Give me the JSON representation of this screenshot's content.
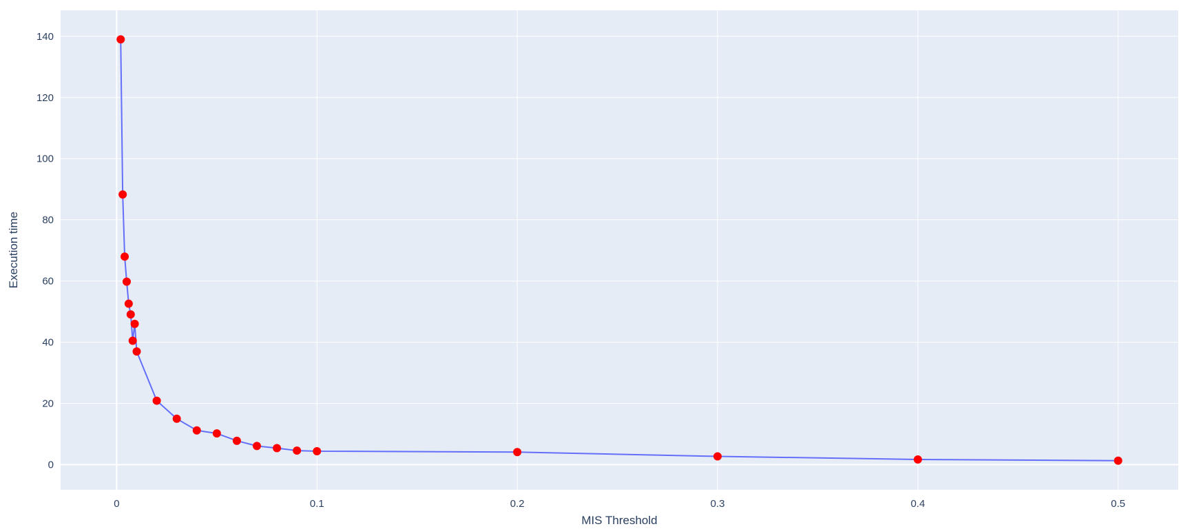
{
  "chart_data": {
    "type": "line",
    "title": "",
    "xlabel": "MIS Threshold",
    "ylabel": "Execution time",
    "xlim": [
      -0.028,
      0.53
    ],
    "ylim": [
      -8.2,
      148.5
    ],
    "grid": true,
    "legend": "none",
    "x_ticks": [
      {
        "value": 0,
        "label": "0"
      },
      {
        "value": 0.1,
        "label": "0.1"
      },
      {
        "value": 0.2,
        "label": "0.2"
      },
      {
        "value": 0.3,
        "label": "0.3"
      },
      {
        "value": 0.4,
        "label": "0.4"
      },
      {
        "value": 0.5,
        "label": "0.5"
      }
    ],
    "y_ticks": [
      {
        "value": 0,
        "label": "0"
      },
      {
        "value": 20,
        "label": "20"
      },
      {
        "value": 40,
        "label": "40"
      },
      {
        "value": 60,
        "label": "60"
      },
      {
        "value": 80,
        "label": "80"
      },
      {
        "value": 100,
        "label": "100"
      },
      {
        "value": 120,
        "label": "120"
      },
      {
        "value": 140,
        "label": "140"
      }
    ],
    "colors": {
      "plot_background": "#e5ecf6",
      "grid": "#ffffff",
      "line": "#636efa",
      "marker": "#ff0000",
      "text": "#2a3f5f"
    },
    "series": [
      {
        "x": [
          0.002,
          0.003,
          0.004,
          0.005,
          0.006,
          0.007,
          0.008,
          0.009,
          0.01,
          0.02,
          0.03,
          0.04,
          0.05,
          0.06,
          0.07,
          0.08,
          0.09,
          0.1,
          0.2,
          0.3,
          0.4,
          0.5
        ],
        "y": [
          139,
          88.3,
          68,
          59.8,
          52.6,
          49.1,
          40.5,
          46,
          37,
          20.9,
          15,
          11.2,
          10.2,
          7.8,
          6.1,
          5.4,
          4.6,
          4.4,
          4.1,
          2.7,
          1.7,
          1.3
        ]
      }
    ]
  }
}
